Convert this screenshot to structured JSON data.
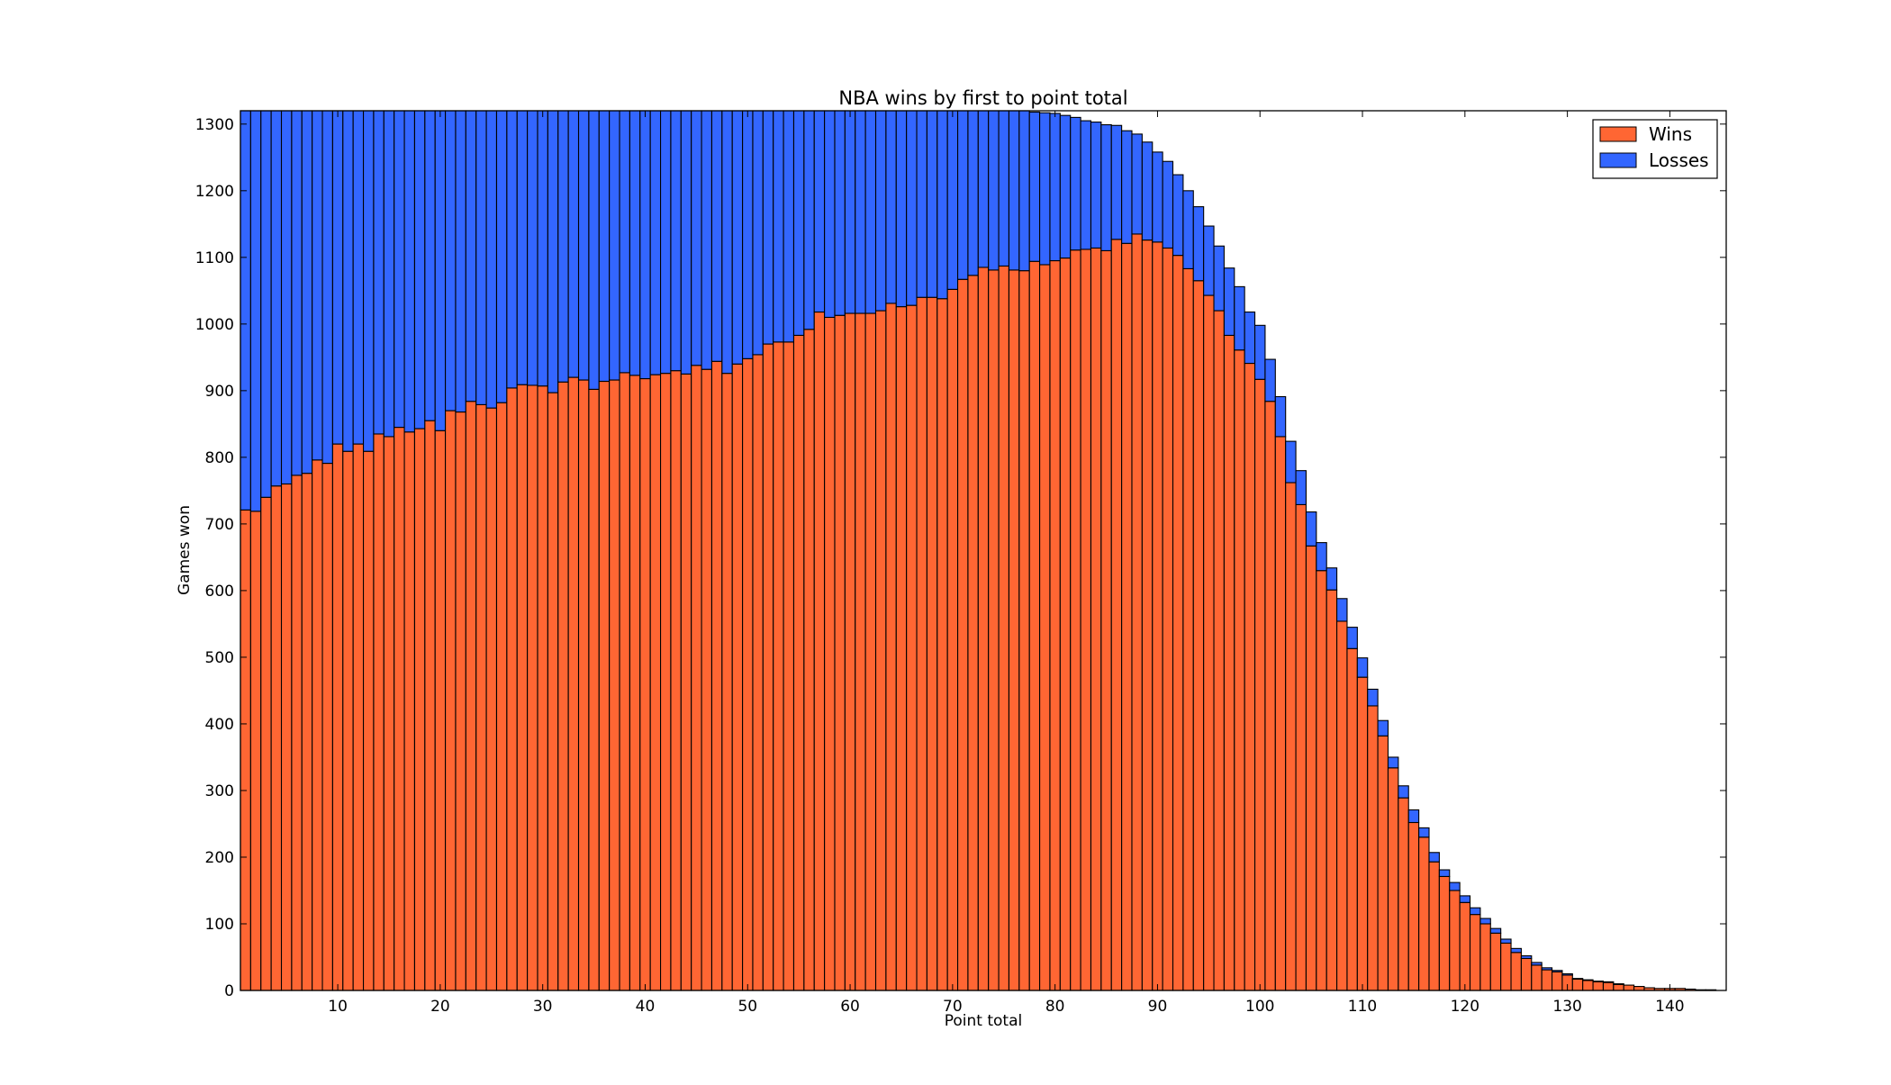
{
  "chart_data": {
    "type": "bar",
    "stacked": true,
    "title": "NBA wins by first to point total",
    "xlabel": "Point total",
    "ylabel": "Games won",
    "xlim": [
      0.5,
      145.5
    ],
    "ylim": [
      0,
      1320
    ],
    "x_ticks": [
      10,
      20,
      30,
      40,
      50,
      60,
      70,
      80,
      90,
      100,
      110,
      120,
      130,
      140
    ],
    "y_ticks": [
      0,
      100,
      200,
      300,
      400,
      500,
      600,
      700,
      800,
      900,
      1000,
      1100,
      1200,
      1300
    ],
    "legend_position": "top-right",
    "grid": false,
    "x": [
      1,
      2,
      3,
      4,
      5,
      6,
      7,
      8,
      9,
      10,
      11,
      12,
      13,
      14,
      15,
      16,
      17,
      18,
      19,
      20,
      21,
      22,
      23,
      24,
      25,
      26,
      27,
      28,
      29,
      30,
      31,
      32,
      33,
      34,
      35,
      36,
      37,
      38,
      39,
      40,
      41,
      42,
      43,
      44,
      45,
      46,
      47,
      48,
      49,
      50,
      51,
      52,
      53,
      54,
      55,
      56,
      57,
      58,
      59,
      60,
      61,
      62,
      63,
      64,
      65,
      66,
      67,
      68,
      69,
      70,
      71,
      72,
      73,
      74,
      75,
      76,
      77,
      78,
      79,
      80,
      81,
      82,
      83,
      84,
      85,
      86,
      87,
      88,
      89,
      90,
      91,
      92,
      93,
      94,
      95,
      96,
      97,
      98,
      99,
      100,
      101,
      102,
      103,
      104,
      105,
      106,
      107,
      108,
      109,
      110,
      111,
      112,
      113,
      114,
      115,
      116,
      117,
      118,
      119,
      120,
      121,
      122,
      123,
      124,
      125,
      126,
      127,
      128,
      129,
      130,
      131,
      132,
      133,
      134,
      135,
      136,
      137,
      138,
      139,
      140,
      141,
      142,
      143,
      144,
      145
    ],
    "series": [
      {
        "name": "Wins",
        "color": "#ff6633",
        "values": [
          721,
          719,
          740,
          757,
          760,
          773,
          776,
          796,
          791,
          820,
          809,
          820,
          809,
          835,
          831,
          845,
          838,
          843,
          855,
          840,
          870,
          868,
          884,
          879,
          874,
          882,
          904,
          909,
          908,
          907,
          897,
          913,
          920,
          916,
          902,
          914,
          916,
          927,
          923,
          918,
          924,
          926,
          930,
          925,
          938,
          932,
          944,
          926,
          940,
          948,
          954,
          970,
          973,
          973,
          983,
          992,
          1018,
          1010,
          1013,
          1016,
          1016,
          1016,
          1020,
          1031,
          1026,
          1028,
          1040,
          1040,
          1038,
          1052,
          1067,
          1073,
          1085,
          1081,
          1087,
          1081,
          1080,
          1094,
          1089,
          1095,
          1099,
          1111,
          1112,
          1114,
          1110,
          1127,
          1121,
          1135,
          1126,
          1123,
          1114,
          1103,
          1083,
          1065,
          1043,
          1020,
          983,
          961,
          941,
          917,
          884,
          831,
          762,
          729,
          667,
          630,
          601,
          554,
          513,
          470,
          427,
          382,
          334,
          289,
          252,
          230,
          193,
          171,
          150,
          132,
          114,
          100,
          86,
          71,
          57,
          48,
          38,
          31,
          28,
          23,
          17,
          15,
          13,
          12,
          9,
          8,
          6,
          4,
          3,
          3,
          3,
          2,
          1,
          1,
          0
        ]
      },
      {
        "name": "Losses",
        "color": "#3366ff",
        "values": [
          599,
          601,
          580,
          563,
          560,
          547,
          544,
          524,
          529,
          500,
          511,
          500,
          511,
          485,
          489,
          475,
          482,
          477,
          465,
          480,
          450,
          452,
          436,
          441,
          446,
          438,
          416,
          411,
          412,
          413,
          423,
          407,
          400,
          404,
          418,
          406,
          404,
          393,
          397,
          402,
          396,
          394,
          390,
          395,
          382,
          388,
          376,
          394,
          380,
          372,
          366,
          350,
          347,
          347,
          337,
          328,
          302,
          310,
          307,
          304,
          304,
          304,
          300,
          289,
          294,
          292,
          280,
          280,
          282,
          268,
          253,
          247,
          235,
          239,
          233,
          239,
          240,
          224,
          228,
          221,
          214,
          199,
          193,
          189,
          189,
          171,
          169,
          150,
          147,
          135,
          130,
          121,
          117,
          111,
          104,
          97,
          101,
          95,
          77,
          81,
          63,
          60,
          62,
          51,
          51,
          42,
          33,
          34,
          32,
          29,
          25,
          23,
          16,
          18,
          19,
          14,
          14,
          10,
          12,
          10,
          10,
          8,
          7,
          6,
          6,
          4,
          4,
          3,
          2,
          2,
          1,
          1,
          1,
          1,
          1,
          0,
          0,
          0,
          0,
          0,
          0,
          0,
          0,
          0,
          0
        ]
      }
    ]
  }
}
